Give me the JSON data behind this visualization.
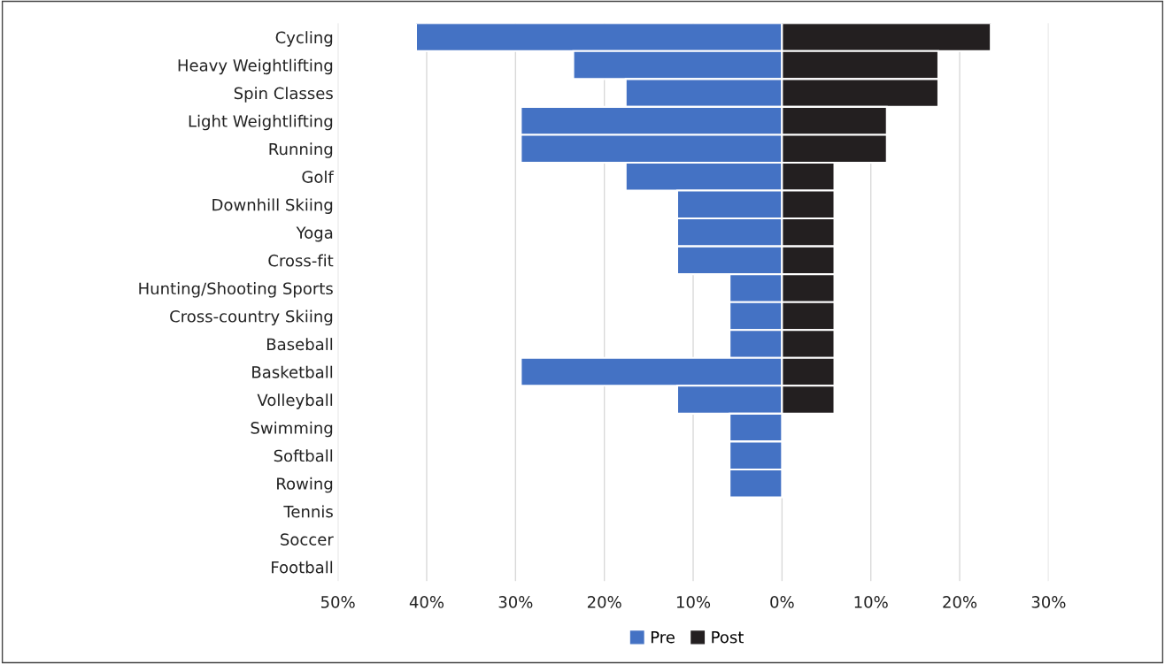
{
  "chart_data": {
    "type": "bar",
    "orientation": "horizontal",
    "categories": [
      "Cycling",
      "Heavy Weightlifting",
      "Spin Classes",
      "Light Weightlifting",
      "Running",
      "Golf",
      "Downhill Skiing",
      "Yoga",
      "Cross-fit",
      "Hunting/Shooting Sports",
      "Cross-country Skiing",
      "Baseball",
      "Basketball",
      "Volleyball",
      "Swimming",
      "Softball",
      "Rowing",
      "Tennis",
      "Soccer",
      "Football"
    ],
    "series": [
      {
        "name": "Pre",
        "color": "#4472c4",
        "values": [
          -41.2,
          -23.5,
          -17.6,
          -29.4,
          -29.4,
          -17.6,
          -11.8,
          -11.8,
          -11.8,
          -5.9,
          -5.9,
          -5.9,
          -29.4,
          -11.8,
          -5.9,
          -5.9,
          -5.9,
          null,
          null,
          null
        ]
      },
      {
        "name": "Post",
        "color": "#231f20",
        "values": [
          23.5,
          17.6,
          17.6,
          11.8,
          11.8,
          5.9,
          5.9,
          5.9,
          5.9,
          5.9,
          5.9,
          5.9,
          5.9,
          5.9,
          null,
          null,
          null,
          null,
          null,
          null
        ]
      }
    ],
    "xlim": [
      -50,
      30
    ],
    "xticks": [
      {
        "value": -50,
        "label": "50%"
      },
      {
        "value": -40,
        "label": "40%"
      },
      {
        "value": -30,
        "label": "30%"
      },
      {
        "value": -20,
        "label": "20%"
      },
      {
        "value": -10,
        "label": "10%"
      },
      {
        "value": 0,
        "label": "0%"
      },
      {
        "value": 10,
        "label": "10%"
      },
      {
        "value": 20,
        "label": "20%"
      },
      {
        "value": 30,
        "label": "30%"
      }
    ],
    "stacked": true,
    "grid": "x",
    "legend": "bottom"
  }
}
